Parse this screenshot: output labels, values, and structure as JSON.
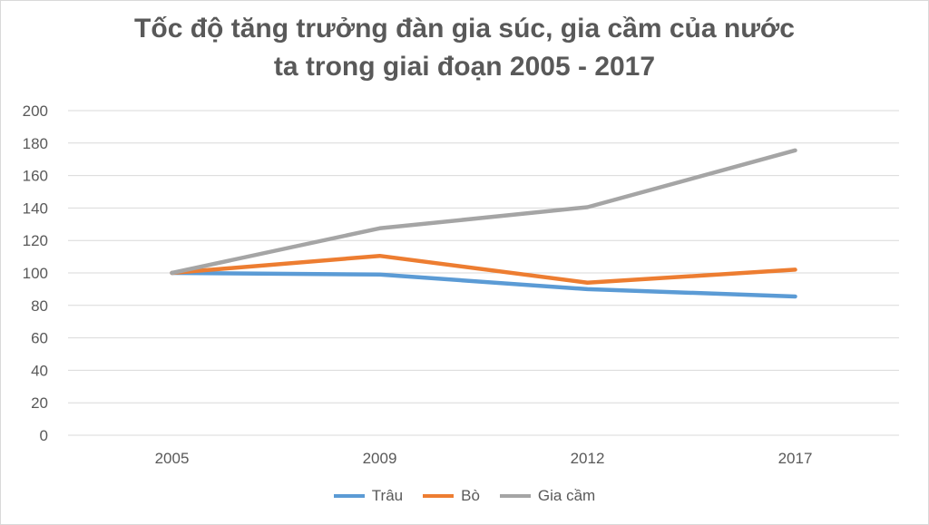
{
  "colors": {
    "trau": "#5b9bd5",
    "bo": "#ed7d31",
    "gia_cam": "#a5a5a5",
    "grid": "#d9d9d9",
    "text": "#595959"
  },
  "chart_data": {
    "type": "line",
    "title_line1": "Tốc độ tăng trưởng đàn gia súc, gia cầm của nước",
    "title_line2": "ta trong giai đoạn 2005 - 2017",
    "xlabel": "",
    "ylabel": "",
    "categories": [
      "2005",
      "2009",
      "2012",
      "2017"
    ],
    "ylim": [
      0,
      200
    ],
    "yticks": [
      "0",
      "20",
      "40",
      "60",
      "80",
      "100",
      "120",
      "140",
      "160",
      "180",
      "200"
    ],
    "grid": true,
    "legend_position": "bottom",
    "series": [
      {
        "name": "Trâu",
        "color": "#5b9bd5",
        "values": [
          100,
          99,
          90,
          85.5
        ]
      },
      {
        "name": "Bò",
        "color": "#ed7d31",
        "values": [
          100,
          110.5,
          94,
          102
        ]
      },
      {
        "name": "Gia cầm",
        "color": "#a5a5a5",
        "values": [
          100,
          127.5,
          140.5,
          175.5
        ]
      }
    ]
  }
}
